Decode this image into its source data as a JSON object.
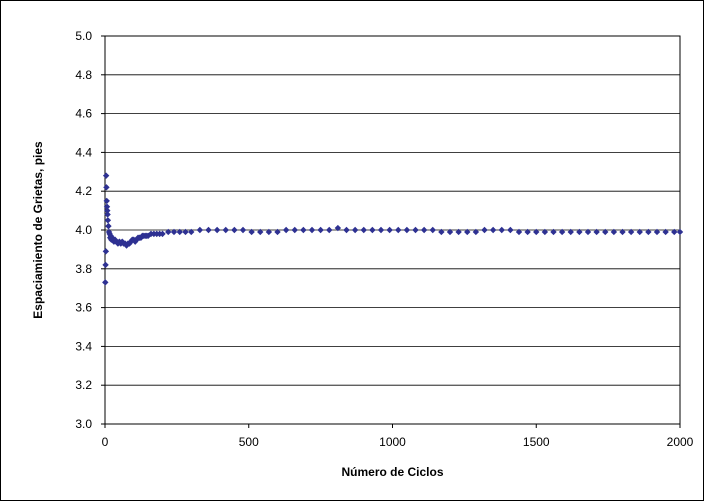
{
  "chart_data": {
    "type": "scatter",
    "title": "",
    "xlabel": "Número de Ciclos",
    "ylabel": "Espaciamiento de Grietas, pies",
    "xlim": [
      0,
      2000
    ],
    "ylim": [
      3.0,
      5.0
    ],
    "x_ticks": [
      "0",
      "500",
      "1000",
      "1500",
      "2000"
    ],
    "y_ticks": [
      "3.0",
      "3.2",
      "3.4",
      "3.6",
      "3.8",
      "4.0",
      "4.2",
      "4.4",
      "4.6",
      "4.8",
      "5.0"
    ],
    "grid": "horizontal",
    "legend": "none",
    "marker": "diamond",
    "color": "#2e3192",
    "series": [
      {
        "x": [
          1,
          2,
          3,
          4,
          5,
          6,
          7,
          8,
          9,
          10,
          12,
          14,
          16,
          18,
          20,
          22,
          25,
          28,
          31,
          35,
          40,
          45,
          50,
          55,
          60,
          65,
          70,
          75,
          80,
          85,
          90,
          95,
          100,
          105,
          110,
          115,
          120,
          125,
          130,
          135,
          140,
          145,
          150,
          160,
          170,
          180,
          190,
          200,
          220,
          240,
          260,
          280,
          300,
          330,
          360,
          390,
          420,
          450,
          480,
          510,
          540,
          570,
          600,
          630,
          660,
          690,
          720,
          750,
          780,
          810,
          840,
          870,
          900,
          930,
          960,
          990,
          1020,
          1050,
          1080,
          1110,
          1140,
          1170,
          1200,
          1230,
          1260,
          1290,
          1320,
          1350,
          1380,
          1410,
          1440,
          1470,
          1500,
          1530,
          1560,
          1590,
          1620,
          1650,
          1680,
          1710,
          1740,
          1770,
          1800,
          1830,
          1860,
          1890,
          1920,
          1950,
          1980,
          2000
        ],
        "y": [
          3.73,
          3.82,
          3.89,
          4.28,
          4.22,
          4.15,
          4.12,
          4.1,
          4.08,
          4.05,
          4.02,
          3.99,
          3.98,
          3.96,
          3.97,
          3.95,
          3.96,
          3.95,
          3.94,
          3.95,
          3.94,
          3.93,
          3.94,
          3.93,
          3.94,
          3.93,
          3.93,
          3.92,
          3.93,
          3.93,
          3.94,
          3.95,
          3.95,
          3.94,
          3.95,
          3.96,
          3.96,
          3.96,
          3.97,
          3.97,
          3.97,
          3.97,
          3.97,
          3.98,
          3.98,
          3.98,
          3.98,
          3.98,
          3.99,
          3.99,
          3.99,
          3.99,
          3.99,
          4.0,
          4.0,
          4.0,
          4.0,
          4.0,
          4.0,
          3.99,
          3.99,
          3.99,
          3.99,
          4.0,
          4.0,
          4.0,
          4.0,
          4.0,
          4.0,
          4.01,
          4.0,
          4.0,
          4.0,
          4.0,
          4.0,
          4.0,
          4.0,
          4.0,
          4.0,
          4.0,
          4.0,
          3.99,
          3.99,
          3.99,
          3.99,
          3.99,
          4.0,
          4.0,
          4.0,
          4.0,
          3.99,
          3.99,
          3.99,
          3.99,
          3.99,
          3.99,
          3.99,
          3.99,
          3.99,
          3.99,
          3.99,
          3.99,
          3.99,
          3.99,
          3.99,
          3.99,
          3.99,
          3.99,
          3.99,
          3.99
        ]
      }
    ]
  }
}
